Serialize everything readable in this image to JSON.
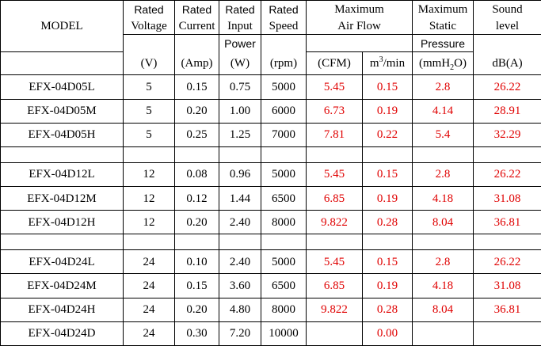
{
  "header": {
    "model": "MODEL",
    "voltage": [
      "Rated",
      "Voltage",
      "(V)"
    ],
    "current": [
      "Rated",
      "Current",
      "(Amp)"
    ],
    "power": [
      "Rated",
      "Input",
      "Power",
      "(W)"
    ],
    "speed": [
      "Rated",
      "Speed",
      "(rpm)"
    ],
    "airflow": [
      "Maximum",
      "Air Flow"
    ],
    "airflow_units": {
      "cfm": "(CFM)",
      "m3_pre": "m",
      "m3_sup": "3",
      "m3_post": "/min"
    },
    "pressure": [
      "Maximum",
      "Static",
      "Pressure"
    ],
    "pressure_unit": {
      "pre": "(mmH",
      "sub": "2",
      "post": "O)"
    },
    "sound": [
      "Sound",
      "level",
      "dB(A)"
    ]
  },
  "groups": [
    [
      {
        "model": "EFX-04D05L",
        "voltage": "5",
        "current": "0.15",
        "power": "0.75",
        "speed": "5000",
        "cfm": "5.45",
        "m3": "0.15",
        "pressure": "2.8",
        "db": "26.22"
      },
      {
        "model": "EFX-04D05M",
        "voltage": "5",
        "current": "0.20",
        "power": "1.00",
        "speed": "6000",
        "cfm": "6.73",
        "m3": "0.19",
        "pressure": "4.14",
        "db": "28.91"
      },
      {
        "model": "EFX-04D05H",
        "voltage": "5",
        "current": "0.25",
        "power": "1.25",
        "speed": "7000",
        "cfm": "7.81",
        "m3": "0.22",
        "pressure": "5.4",
        "db": "32.29"
      }
    ],
    [
      {
        "model": "EFX-04D12L",
        "voltage": "12",
        "current": "0.08",
        "power": "0.96",
        "speed": "5000",
        "cfm": "5.45",
        "m3": "0.15",
        "pressure": "2.8",
        "db": "26.22"
      },
      {
        "model": "EFX-04D12M",
        "voltage": "12",
        "current": "0.12",
        "power": "1.44",
        "speed": "6500",
        "cfm": "6.85",
        "m3": "0.19",
        "pressure": "4.18",
        "db": "31.08"
      },
      {
        "model": "EFX-04D12H",
        "voltage": "12",
        "current": "0.20",
        "power": "2.40",
        "speed": "8000",
        "cfm": "9.822",
        "m3": "0.28",
        "pressure": "8.04",
        "db": "36.81"
      }
    ],
    [
      {
        "model": "EFX-04D24L",
        "voltage": "24",
        "current": "0.10",
        "power": "2.40",
        "speed": "5000",
        "cfm": "5.45",
        "m3": "0.15",
        "pressure": "2.8",
        "db": "26.22"
      },
      {
        "model": "EFX-04D24M",
        "voltage": "24",
        "current": "0.15",
        "power": "3.60",
        "speed": "6500",
        "cfm": "6.85",
        "m3": "0.19",
        "pressure": "4.18",
        "db": "31.08"
      },
      {
        "model": "EFX-04D24H",
        "voltage": "24",
        "current": "0.20",
        "power": "4.80",
        "speed": "8000",
        "cfm": "9.822",
        "m3": "0.28",
        "pressure": "8.04",
        "db": "36.81"
      },
      {
        "model": "EFX-04D24D",
        "voltage": "24",
        "current": "0.30",
        "power": "7.20",
        "speed": "10000",
        "cfm": "",
        "m3": "0.00",
        "pressure": "",
        "db": ""
      }
    ]
  ]
}
